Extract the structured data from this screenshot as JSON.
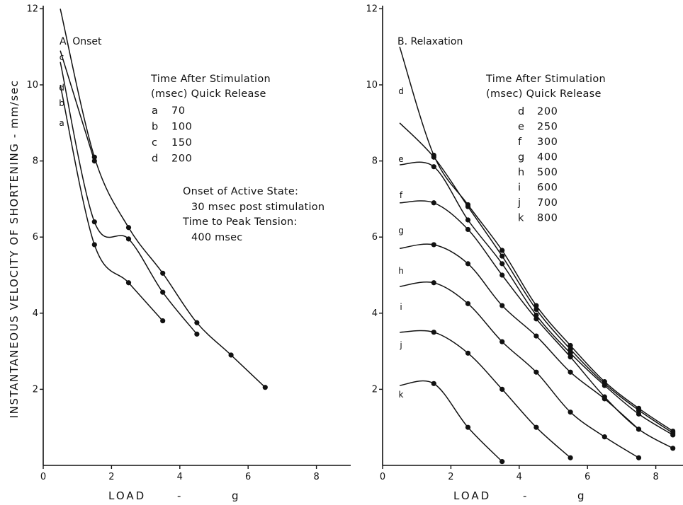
{
  "ylabel": "INSTANTANEOUS VELOCITY OF SHORTENING - mm/sec",
  "chart_data": [
    {
      "type": "line",
      "title": "A. Onset",
      "xlabel": {
        "left": "LOAD",
        "dash": "-",
        "unit": "g"
      },
      "xlim": [
        0,
        9
      ],
      "ylim": [
        0,
        13.5
      ],
      "xticks": [
        0,
        2,
        4,
        6,
        8
      ],
      "yticks": [
        2,
        4,
        6,
        8,
        10,
        12
      ],
      "legend_title": [
        "Time After Stimulation",
        "(msec) Quick Release"
      ],
      "legend": [
        {
          "letter": "a",
          "value": "70"
        },
        {
          "letter": "b",
          "value": "100"
        },
        {
          "letter": "c",
          "value": "150"
        },
        {
          "letter": "d",
          "value": "200"
        }
      ],
      "notes": [
        "Onset of Active State:",
        "30 msec post stimulation",
        "Time to Peak Tension:",
        "400 msec"
      ],
      "series": [
        {
          "name": "a",
          "start": [
            0.5,
            10.0
          ],
          "x": [
            1.5,
            2.5,
            3.5
          ],
          "y": [
            5.8,
            4.8,
            3.8
          ]
        },
        {
          "name": "b",
          "start": [
            0.5,
            10.6
          ],
          "x": [
            1.5,
            2.5,
            3.5,
            4.5
          ],
          "y": [
            6.4,
            5.95,
            4.55,
            3.45
          ]
        },
        {
          "name": "c",
          "start": [
            0.5,
            12.0
          ],
          "x": [
            1.5,
            2.5,
            3.5,
            4.5,
            5.5,
            6.5
          ],
          "y": [
            8.1,
            6.25,
            5.05,
            3.75,
            2.9,
            2.05
          ]
        },
        {
          "name": "d",
          "start": [
            0.5,
            10.9
          ],
          "x": [
            1.5
          ],
          "y": [
            8.0
          ]
        }
      ]
    },
    {
      "type": "line",
      "title": "B. Relaxation",
      "xlabel": {
        "left": "LOAD",
        "dash": "-",
        "unit": "g"
      },
      "xlim": [
        0,
        9
      ],
      "ylim": [
        0,
        13.5
      ],
      "xticks": [
        0,
        2,
        4,
        6,
        8
      ],
      "yticks": [
        2,
        4,
        6,
        8,
        10,
        12
      ],
      "legend_title": [
        "Time After Stimulation",
        "(msec) Quick Release"
      ],
      "legend": [
        {
          "letter": "d",
          "value": "200"
        },
        {
          "letter": "e",
          "value": "250"
        },
        {
          "letter": "f",
          "value": "300"
        },
        {
          "letter": "g",
          "value": "400"
        },
        {
          "letter": "h",
          "value": "500"
        },
        {
          "letter": "i",
          "value": "600"
        },
        {
          "letter": "j",
          "value": "700"
        },
        {
          "letter": "k",
          "value": "800"
        }
      ],
      "series": [
        {
          "name": "d",
          "start": [
            0.5,
            11.0
          ],
          "x": [
            1.5,
            2.5,
            3.5,
            4.5,
            5.5,
            6.5,
            7.5,
            8.5
          ],
          "y": [
            8.15,
            6.85,
            5.65,
            4.2,
            3.15,
            2.2,
            1.5,
            0.9
          ]
        },
        {
          "name": "e",
          "start": [
            0.5,
            9.0
          ],
          "x": [
            1.5,
            2.5,
            3.5,
            4.5,
            5.5,
            6.5,
            7.5,
            8.5
          ],
          "y": [
            8.1,
            6.8,
            5.5,
            4.1,
            3.05,
            2.15,
            1.45,
            0.85
          ]
        },
        {
          "name": "f",
          "start": [
            0.5,
            7.9
          ],
          "x": [
            1.5,
            2.5,
            3.5,
            4.5,
            5.5,
            6.5,
            7.5,
            8.5
          ],
          "y": [
            7.85,
            6.45,
            5.3,
            3.95,
            2.95,
            2.1,
            1.35,
            0.8
          ]
        },
        {
          "name": "g",
          "start": [
            0.5,
            6.9
          ],
          "x": [
            1.5,
            2.5,
            3.5,
            4.5,
            5.5,
            6.5,
            7.5,
            8.5
          ],
          "y": [
            6.9,
            6.2,
            5.0,
            3.85,
            2.85,
            1.8,
            0.95,
            0.45
          ]
        },
        {
          "name": "h",
          "start": [
            0.5,
            5.7
          ],
          "x": [
            1.5,
            2.5,
            3.5,
            4.5,
            5.5,
            6.5,
            7.5
          ],
          "y": [
            5.8,
            5.3,
            4.2,
            3.4,
            2.45,
            1.75,
            0.95
          ]
        },
        {
          "name": "i",
          "start": [
            0.5,
            4.7
          ],
          "x": [
            1.5,
            2.5,
            3.5,
            4.5,
            5.5,
            6.5,
            7.5
          ],
          "y": [
            4.8,
            4.25,
            3.25,
            2.45,
            1.4,
            0.75,
            0.2
          ]
        },
        {
          "name": "j",
          "start": [
            0.5,
            3.5
          ],
          "x": [
            1.5,
            2.5,
            3.5,
            4.5,
            5.5
          ],
          "y": [
            3.5,
            2.95,
            2.0,
            1.0,
            0.2
          ]
        },
        {
          "name": "k",
          "start": [
            0.5,
            2.1
          ],
          "x": [
            1.5,
            2.5,
            3.5
          ],
          "y": [
            2.15,
            1.0,
            0.1
          ]
        }
      ]
    }
  ]
}
